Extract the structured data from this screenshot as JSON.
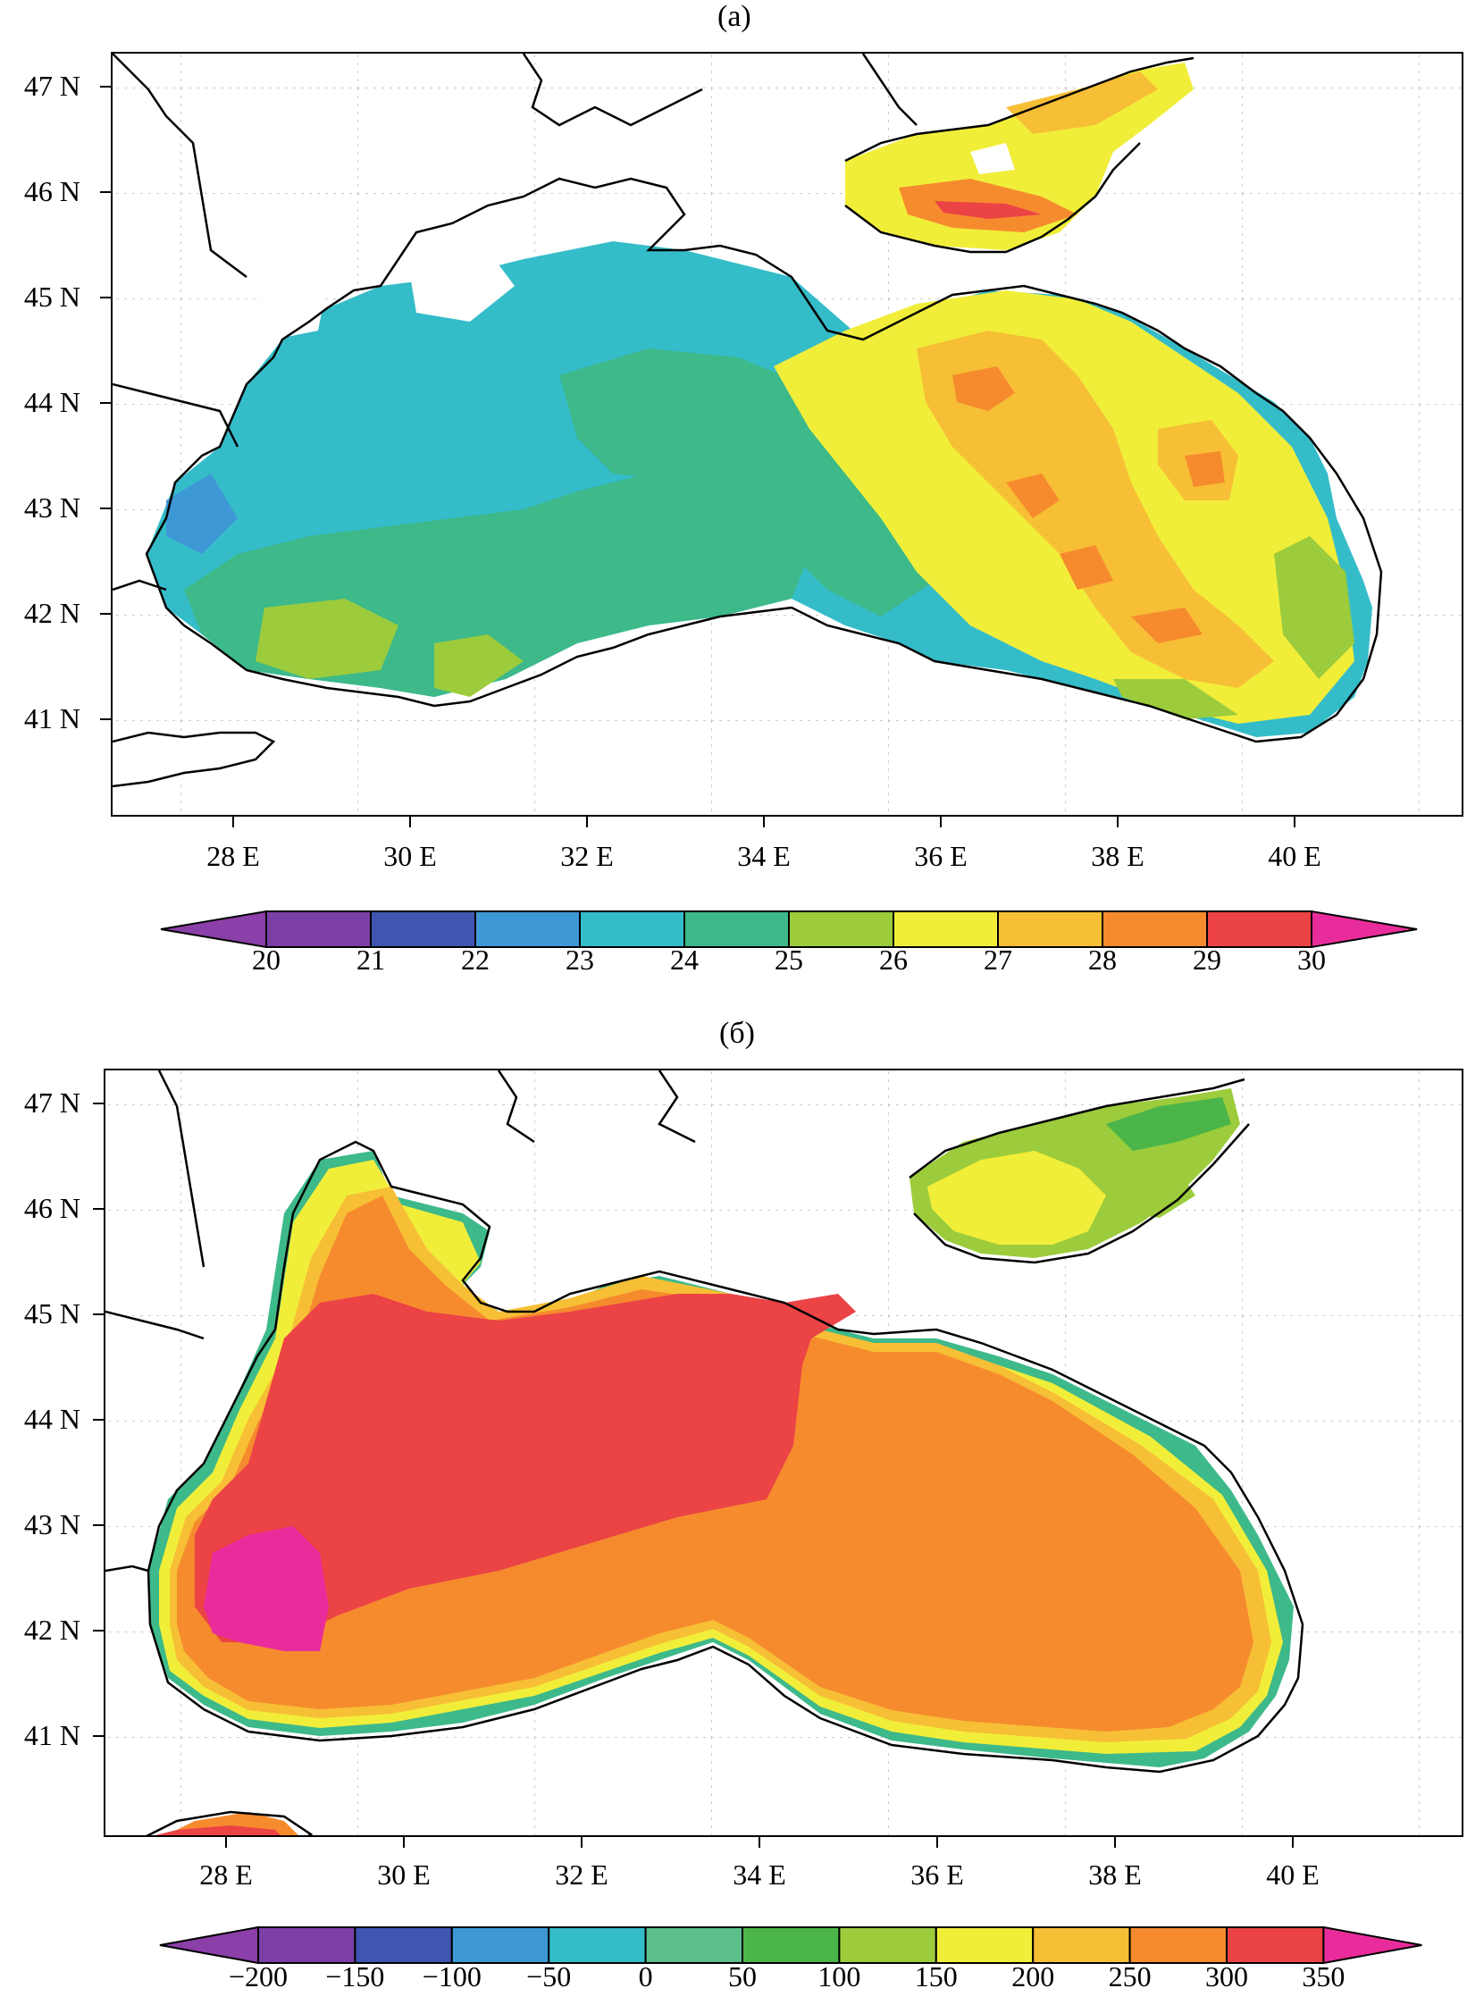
{
  "panel_a": {
    "label": "(a)",
    "lat_labels": [
      "47 N",
      "46 N",
      "45 N",
      "44 N",
      "43 N",
      "42 N",
      "41 N"
    ],
    "lon_labels": [
      "28 E",
      "30 E",
      "32 E",
      "34 E",
      "36 E",
      "38 E",
      "40 E"
    ],
    "colorbar": {
      "ticks": [
        "20",
        "21",
        "22",
        "23",
        "24",
        "25",
        "26",
        "27",
        "28",
        "29",
        "30"
      ],
      "colors": [
        "#7b3fa6",
        "#3f55b0",
        "#3e98d6",
        "#35bcc9",
        "#3db98a",
        "#9ccc3c",
        "#f1ee3a",
        "#f7bf35",
        "#f68b2e",
        "#ec4345"
      ],
      "under_color": "#8b3fa8",
      "over_color": "#e92c9c"
    }
  },
  "panel_b": {
    "label": "(б)",
    "lat_labels": [
      "47 N",
      "46 N",
      "45 N",
      "44 N",
      "43 N",
      "42 N",
      "41 N"
    ],
    "lon_labels": [
      "28 E",
      "30 E",
      "32 E",
      "34 E",
      "36 E",
      "38 E",
      "40 E"
    ],
    "colorbar": {
      "ticks": [
        "−200",
        "−150",
        "−100",
        "−50",
        "0",
        "50",
        "100",
        "150",
        "200",
        "250",
        "300",
        "350"
      ],
      "colors": [
        "#7b3fa6",
        "#3f55b0",
        "#3e98d6",
        "#35bcc9",
        "#5cbf8b",
        "#4bb54a",
        "#9ccc3c",
        "#f1ee3a",
        "#f7bf35",
        "#f68b2e",
        "#ec4345"
      ],
      "under_color": "#8b3fa8",
      "over_color": "#e92c9c"
    }
  }
}
